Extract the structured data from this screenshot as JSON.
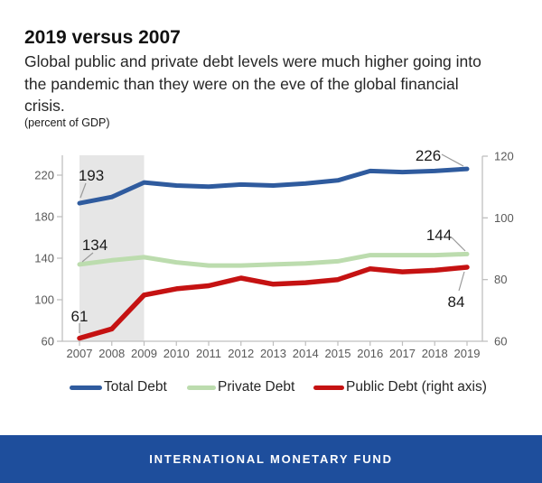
{
  "header": {
    "title": "2019 versus 2007",
    "subtitle_lines": [
      "Global public and private debt levels were much higher going into",
      "the pandemic than they were on the eve of the global financial",
      "crisis."
    ],
    "unit_note": "(percent of GDP)"
  },
  "chart_data": {
    "type": "line",
    "categories": [
      2007,
      2008,
      2009,
      2010,
      2011,
      2012,
      2013,
      2014,
      2015,
      2016,
      2017,
      2018,
      2019
    ],
    "series": [
      {
        "name": "Total Debt",
        "axis": "left",
        "color": "#2f5b9e",
        "values": [
          193,
          199,
          213,
          210,
          209,
          211,
          210,
          212,
          215,
          224,
          223,
          224,
          226
        ]
      },
      {
        "name": "Private Debt",
        "axis": "left",
        "color": "#bcdcae",
        "values": [
          134,
          138,
          141,
          136,
          133,
          133,
          134,
          135,
          137,
          143,
          143,
          143,
          144
        ]
      },
      {
        "name": "Public Debt (right axis)",
        "axis": "right",
        "color": "#c51212",
        "values": [
          61,
          64,
          75,
          77,
          78,
          80.5,
          78.5,
          79,
          80,
          83.5,
          82.5,
          83,
          84
        ]
      }
    ],
    "left_axis": {
      "min": 60,
      "max": 240,
      "ticks": [
        220,
        180,
        100,
        140,
        60
      ]
    },
    "right_axis": {
      "min": 60,
      "max": 120,
      "ticks": [
        120,
        100,
        80,
        60
      ]
    },
    "annotations": [
      {
        "series": "Total Debt",
        "category": 2007,
        "label": "193"
      },
      {
        "series": "Private Debt",
        "category": 2007,
        "label": "134"
      },
      {
        "series": "Public Debt (right axis)",
        "category": 2007,
        "label": "61"
      },
      {
        "series": "Total Debt",
        "category": 2019,
        "label": "226"
      },
      {
        "series": "Private Debt",
        "category": 2019,
        "label": "144"
      },
      {
        "series": "Public Debt (right axis)",
        "category": 2019,
        "label": "84"
      }
    ],
    "recession_band": {
      "from": 2007,
      "to": 2009
    },
    "grid": false,
    "legend_position": "bottom",
    "colors": {
      "band": "#e6e6e6",
      "axis": "#bfbfbf",
      "leader": "#9a9a9a"
    }
  },
  "footer": {
    "label": "INTERNATIONAL MONETARY FUND",
    "background": "#1e4e9c"
  }
}
